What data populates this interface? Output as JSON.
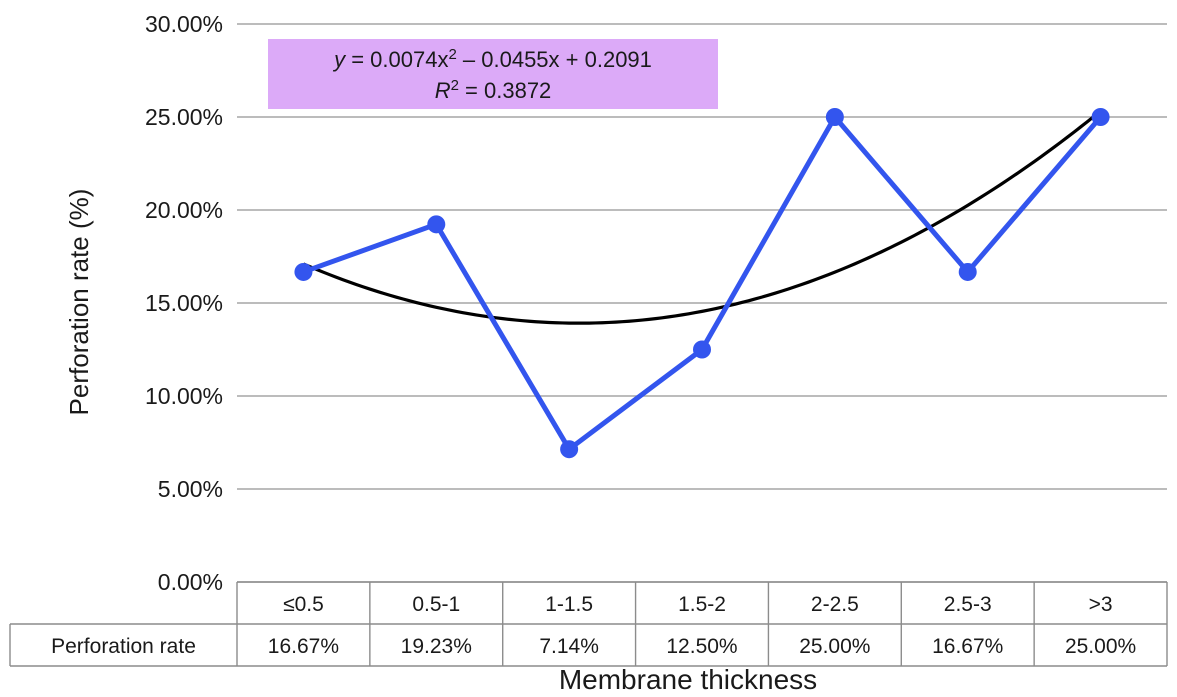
{
  "chart_data": {
    "type": "line",
    "ylabel": "Perforation rate (%)",
    "xlabel": "Membrane thickness",
    "categories": [
      "≤0.5",
      "0.5-1",
      "1-1.5",
      "1.5-2",
      "2-2.5",
      "2.5-3",
      ">3"
    ],
    "series": [
      {
        "name": "Perforation rate",
        "values": [
          0.1667,
          0.1923,
          0.0714,
          0.125,
          0.25,
          0.1667,
          0.25
        ],
        "labels": [
          "16.67%",
          "19.23%",
          "7.14%",
          "12.50%",
          "25.00%",
          "16.67%",
          "25.00%"
        ],
        "color": "#3355ee"
      }
    ],
    "trendline": {
      "type": "polynomial",
      "order": 2,
      "coefficients": [
        0.0074,
        -0.0455,
        0.2091
      ],
      "equation_prefix": "y",
      "equation_rest": " = 0.0074x",
      "equation_exp": "2",
      "equation_tail": " – 0.0455x + 0.2091",
      "r2_prefix": "R",
      "r2_exp": "2",
      "r2_tail": " = 0.3872",
      "color": "#000000",
      "box_color": "#dcaaf8"
    },
    "ylim": [
      0,
      0.3
    ],
    "yticks": [
      0,
      0.05,
      0.1,
      0.15,
      0.2,
      0.25,
      0.3
    ],
    "ytick_labels": [
      "0.00%",
      "5.00%",
      "10.00%",
      "15.00%",
      "20.00%",
      "25.00%",
      "30.00%"
    ],
    "grid": true,
    "data_table": true
  }
}
